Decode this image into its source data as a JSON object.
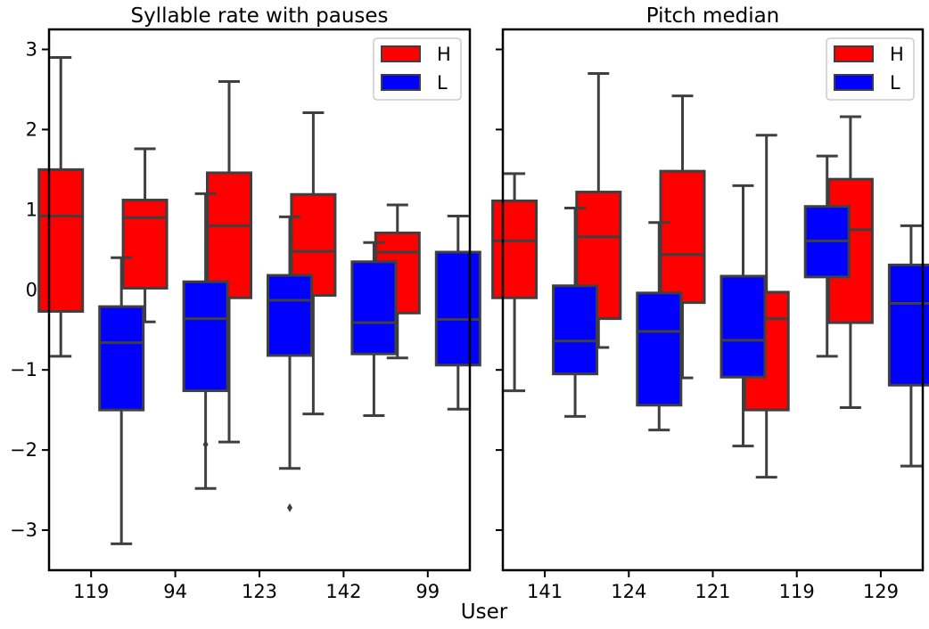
{
  "shared_xlabel": "User",
  "colors": {
    "H": "#ff0000",
    "L": "#0000ff",
    "line": "#3f3f3f"
  },
  "chart_data": [
    {
      "type": "box",
      "title": "Syllable rate with pauses",
      "ylim": [
        -3.5,
        3.25
      ],
      "yticks": [
        -3,
        -2,
        -1,
        0,
        1,
        2,
        3
      ],
      "ytick_labels": [
        "−3",
        "−2",
        "−1",
        "0",
        "1",
        "2",
        "3"
      ],
      "categories": [
        "119",
        "94",
        "123",
        "142",
        "99"
      ],
      "legend": {
        "position": "top-right",
        "entries": [
          "H",
          "L"
        ]
      },
      "series": [
        {
          "name": "H",
          "boxes": [
            {
              "whislo": -0.83,
              "q1": -0.27,
              "med": 0.92,
              "q3": 1.5,
              "whishi": 2.9,
              "fliers": []
            },
            {
              "whislo": -0.4,
              "q1": 0.02,
              "med": 0.9,
              "q3": 1.12,
              "whishi": 1.76,
              "fliers": []
            },
            {
              "whislo": -1.9,
              "q1": -0.1,
              "med": 0.8,
              "q3": 1.46,
              "whishi": 2.6,
              "fliers": []
            },
            {
              "whislo": -1.55,
              "q1": -0.07,
              "med": 0.48,
              "q3": 1.19,
              "whishi": 2.21,
              "fliers": []
            },
            {
              "whislo": -0.85,
              "q1": -0.29,
              "med": 0.47,
              "q3": 0.71,
              "whishi": 1.06,
              "fliers": []
            }
          ]
        },
        {
          "name": "L",
          "boxes": [
            {
              "whislo": -3.17,
              "q1": -1.5,
              "med": -0.66,
              "q3": -0.21,
              "whishi": 0.4,
              "fliers": []
            },
            {
              "whislo": -2.48,
              "q1": -1.26,
              "med": -0.36,
              "q3": 0.1,
              "whishi": 1.2,
              "fliers": [
                -1.93
              ]
            },
            {
              "whislo": -2.23,
              "q1": -0.82,
              "med": -0.13,
              "q3": 0.18,
              "whishi": 0.91,
              "fliers": [
                -2.72
              ]
            },
            {
              "whislo": -1.57,
              "q1": -0.8,
              "med": -0.41,
              "q3": 0.35,
              "whishi": 0.59,
              "fliers": []
            },
            {
              "whislo": -1.49,
              "q1": -0.94,
              "med": -0.37,
              "q3": 0.47,
              "whishi": 0.92,
              "fliers": []
            }
          ]
        }
      ]
    },
    {
      "type": "box",
      "title": "Pitch median",
      "ylim": [
        -3.5,
        3.25
      ],
      "yticks": [
        -3,
        -2,
        -1,
        0,
        1,
        2,
        3
      ],
      "ytick_labels": [],
      "categories": [
        "141",
        "124",
        "121",
        "119",
        "129"
      ],
      "legend": {
        "position": "top-right",
        "entries": [
          "H",
          "L"
        ]
      },
      "series": [
        {
          "name": "H",
          "boxes": [
            {
              "whislo": -1.26,
              "q1": -0.1,
              "med": 0.61,
              "q3": 1.11,
              "whishi": 1.45,
              "fliers": []
            },
            {
              "whislo": -0.72,
              "q1": -0.36,
              "med": 0.66,
              "q3": 1.22,
              "whishi": 2.7,
              "fliers": []
            },
            {
              "whislo": -1.1,
              "q1": -0.16,
              "med": 0.44,
              "q3": 1.48,
              "whishi": 2.42,
              "fliers": []
            },
            {
              "whislo": -2.34,
              "q1": -1.5,
              "med": -0.36,
              "q3": -0.03,
              "whishi": 1.93,
              "fliers": []
            },
            {
              "whislo": -1.47,
              "q1": -0.41,
              "med": 0.75,
              "q3": 1.38,
              "whishi": 2.16,
              "fliers": []
            }
          ]
        },
        {
          "name": "L",
          "boxes": [
            {
              "whislo": -1.58,
              "q1": -1.05,
              "med": -0.64,
              "q3": 0.05,
              "whishi": 1.02,
              "fliers": []
            },
            {
              "whislo": -1.75,
              "q1": -1.44,
              "med": -0.52,
              "q3": -0.04,
              "whishi": 0.84,
              "fliers": []
            },
            {
              "whislo": -1.95,
              "q1": -1.09,
              "med": -0.63,
              "q3": 0.17,
              "whishi": 1.3,
              "fliers": []
            },
            {
              "whislo": -0.83,
              "q1": 0.16,
              "med": 0.61,
              "q3": 1.04,
              "whishi": 1.67,
              "fliers": []
            },
            {
              "whislo": -2.2,
              "q1": -1.19,
              "med": -0.17,
              "q3": 0.31,
              "whishi": 0.8,
              "fliers": []
            }
          ]
        }
      ]
    }
  ]
}
